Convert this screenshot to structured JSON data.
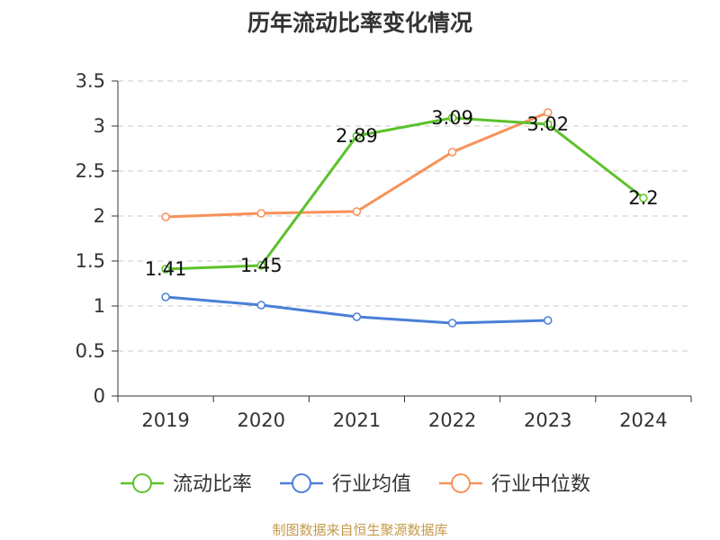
{
  "chart_data": {
    "type": "line",
    "title": "历年流动比率变化情况",
    "categories": [
      "2019",
      "2020",
      "2021",
      "2022",
      "2023",
      "2024"
    ],
    "ylim": [
      0,
      3.5
    ],
    "yticks": [
      "0",
      "0.5",
      "1",
      "1.5",
      "2",
      "2.5",
      "3",
      "3.5"
    ],
    "series": [
      {
        "name": "流动比率",
        "color": "#5cc22a",
        "values": [
          1.41,
          1.45,
          2.89,
          3.09,
          3.02,
          2.2
        ],
        "labels": [
          "1.41",
          "1.45",
          "2.89",
          "3.09",
          "3.02",
          "2.2"
        ]
      },
      {
        "name": "行业均值",
        "color": "#4a7fd8",
        "values": [
          1.1,
          1.01,
          0.88,
          0.81,
          0.84,
          null
        ]
      },
      {
        "name": "行业中位数",
        "color": "#f8915a",
        "values": [
          1.99,
          2.03,
          2.05,
          2.71,
          3.15,
          null
        ]
      }
    ],
    "grid": true,
    "legend": "bottom"
  },
  "source": "制图数据来自恒生聚源数据库"
}
